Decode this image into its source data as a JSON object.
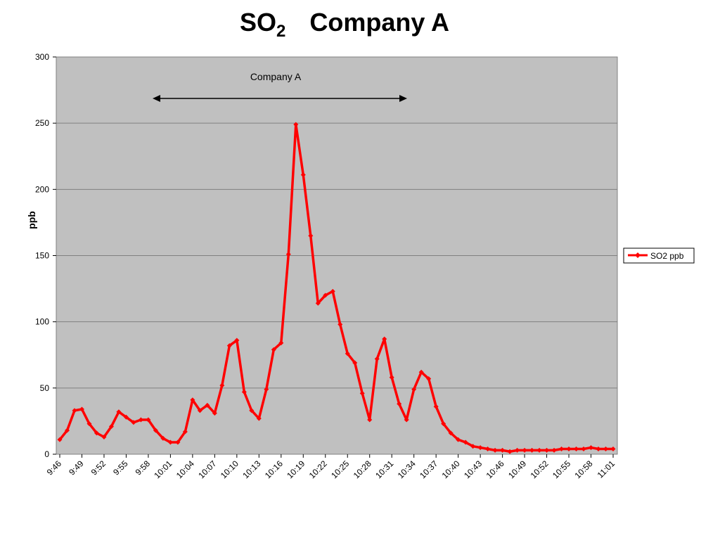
{
  "chart_data": {
    "type": "line",
    "title": {
      "text": "SO",
      "subscript": "2",
      "rest": "Company A"
    },
    "y_label": "ppb",
    "annotation": "Company A",
    "categories": [
      "9:46",
      null,
      null,
      "9:49",
      null,
      null,
      "9:52",
      null,
      null,
      "9:55",
      null,
      null,
      "9:58",
      null,
      null,
      "10:01",
      null,
      null,
      "10:04",
      null,
      null,
      "10:07",
      null,
      null,
      "10:10",
      null,
      null,
      "10:13",
      null,
      null,
      "10:16",
      null,
      null,
      "10:19",
      null,
      null,
      "10:22",
      null,
      null,
      "10:25",
      null,
      null,
      "10:28",
      null,
      null,
      "10:31",
      null,
      null,
      "10:34",
      null,
      null,
      "10:37",
      null,
      null,
      "10:40",
      null,
      null,
      "10:43",
      null,
      null,
      "10:46",
      null,
      null,
      "10:49",
      null,
      null,
      "10:52",
      null,
      null,
      "10:55",
      null,
      null,
      "10:58",
      null,
      null,
      "11:01"
    ],
    "series": [
      {
        "name": "SO2 ppb",
        "color": "#ff0000",
        "values": [
          11,
          18,
          33,
          34,
          23,
          16,
          13,
          21,
          32,
          28,
          24,
          26,
          26,
          18,
          12,
          9,
          9,
          17,
          41,
          33,
          37,
          31,
          52,
          82,
          86,
          47,
          33,
          27,
          49,
          79,
          84,
          151,
          249,
          211,
          165,
          114,
          120,
          123,
          98,
          76,
          69,
          46,
          26,
          72,
          87,
          58,
          38,
          26,
          49,
          62,
          57,
          36,
          23,
          16,
          11,
          9,
          6,
          5,
          4,
          3,
          3,
          2,
          3,
          3,
          3,
          3,
          3,
          3,
          4,
          4,
          4,
          4,
          5,
          4,
          4,
          4
        ]
      }
    ],
    "ylim": [
      0,
      300
    ],
    "yticks": [
      0,
      50,
      100,
      150,
      200,
      250,
      300
    ],
    "grid": true,
    "legend": "right"
  }
}
